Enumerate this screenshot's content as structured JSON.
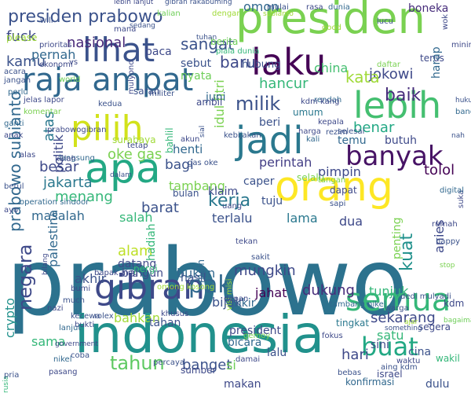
{
  "palette": {
    "dark_purple": "#440154",
    "indigo": "#3b2f80",
    "blue": "#31688e",
    "teal": "#21918c",
    "green": "#35b779",
    "lime": "#90d743",
    "yellow": "#dde318"
  },
  "words": [
    {
      "text": "prabowo",
      "color": "#2c728e"
    },
    {
      "text": "indonesia",
      "color": "#21918c"
    },
    {
      "text": "presiden",
      "color": "#7ad151"
    },
    {
      "text": "orang",
      "color": "#fde725"
    },
    {
      "text": "apa",
      "color": "#23a884"
    },
    {
      "text": "raja ampat",
      "color": "#31688e"
    },
    {
      "text": "lihat",
      "color": "#3b528b"
    },
    {
      "text": "laku",
      "color": "#440154"
    },
    {
      "text": "pilih",
      "color": "#d2e21b"
    },
    {
      "text": "jadi",
      "color": "#2a788e"
    },
    {
      "text": "lebih",
      "color": "#44bf70"
    },
    {
      "text": "semua",
      "color": "#35b779"
    },
    {
      "text": "gibran",
      "color": "#3e4989"
    },
    {
      "text": "banyak",
      "color": "#471365"
    },
    {
      "text": "presiden prabowo",
      "color": "#3b528b"
    },
    {
      "text": "tahun",
      "color": "#5ec962"
    },
    {
      "text": "buat",
      "color": "#22a884"
    },
    {
      "text": "pak",
      "color": "#31688e"
    },
    {
      "text": "kerja",
      "color": "#2a788e"
    },
    {
      "text": "negara",
      "color": "#3e4989"
    },
    {
      "text": "prabowo subianto",
      "color": "#31688e"
    },
    {
      "text": "kuat",
      "color": "#21918c"
    },
    {
      "text": "milik",
      "color": "#3b528b"
    },
    {
      "text": "baik",
      "color": "#472d7b"
    },
    {
      "text": "jokowi",
      "color": "#3e4989"
    },
    {
      "text": "kata",
      "color": "#a0da39"
    },
    {
      "text": "baru",
      "color": "#3e4989"
    },
    {
      "text": "sangat",
      "color": "#3b528b"
    },
    {
      "text": "nasional",
      "color": "#482878"
    },
    {
      "text": "fuck",
      "color": "#3e4989"
    },
    {
      "text": "kamu",
      "color": "#3b528b"
    },
    {
      "text": "pernah",
      "color": "#31688e"
    },
    {
      "text": "nyata",
      "color": "#6ece58"
    },
    {
      "text": "baca",
      "color": "#3e4989"
    },
    {
      "text": "omon",
      "color": "#31688e"
    },
    {
      "text": "boneka",
      "color": "#472d7b"
    },
    {
      "text": "china",
      "color": "#44bf70"
    },
    {
      "text": "hubung",
      "color": "#3b528b"
    },
    {
      "text": "hancur",
      "color": "#35b779"
    },
    {
      "text": "terus",
      "color": "#3e4989"
    },
    {
      "text": "harap",
      "color": "#31688e"
    },
    {
      "text": "atas",
      "color": "#2a788e"
    },
    {
      "text": "politik",
      "color": "#3e4989"
    },
    {
      "text": "benar",
      "color": "#22a884"
    },
    {
      "text": "beri",
      "color": "#3b528b"
    },
    {
      "text": "umum",
      "color": "#2a788e"
    },
    {
      "text": "temu",
      "color": "#31688e"
    },
    {
      "text": "butuh",
      "color": "#3e4989"
    },
    {
      "text": "oke gas",
      "color": "#7ad151"
    },
    {
      "text": "henti",
      "color": "#31688e"
    },
    {
      "text": "bagi",
      "color": "#3b528b"
    },
    {
      "text": "perintah",
      "color": "#433e85"
    },
    {
      "text": "pimpin",
      "color": "#3e4989"
    },
    {
      "text": "tolol",
      "color": "#440154"
    },
    {
      "text": "besar",
      "color": "#3e4989"
    },
    {
      "text": "jakarta",
      "color": "#2a788e"
    },
    {
      "text": "tambang",
      "color": "#7ad151"
    },
    {
      "text": "menang",
      "color": "#35b779"
    },
    {
      "text": "masalah",
      "color": "#31688e"
    },
    {
      "text": "barat",
      "color": "#3b528b"
    },
    {
      "text": "salah",
      "color": "#35b779"
    },
    {
      "text": "terlalu",
      "color": "#3b528b"
    },
    {
      "text": "lama",
      "color": "#2a788e"
    },
    {
      "text": "dua",
      "color": "#3e4989"
    },
    {
      "text": "tuju",
      "color": "#3b528b"
    },
    {
      "text": "klaim",
      "color": "#3e4989"
    },
    {
      "text": "caper",
      "color": "#3b528b"
    },
    {
      "text": "selalu",
      "color": "#7ad151"
    },
    {
      "text": "palestina",
      "color": "#31688e"
    },
    {
      "text": "alam",
      "color": "#bddf26"
    },
    {
      "text": "hadiah",
      "color": "#35b779"
    },
    {
      "text": "anies",
      "color": "#3e4989"
    },
    {
      "text": "penting",
      "color": "#7ad151"
    },
    {
      "text": "mungkin",
      "color": "#3e4989"
    },
    {
      "text": "dukung",
      "color": "#472d7b"
    },
    {
      "text": "tunjuk",
      "color": "#35b779"
    },
    {
      "text": "akhir",
      "color": "#3b528b"
    },
    {
      "text": "bukan",
      "color": "#31688e"
    },
    {
      "text": "datang",
      "color": "#3e4989"
    },
    {
      "text": "bangun",
      "color": "#3e4989"
    },
    {
      "text": "jahat",
      "color": "#440154"
    },
    {
      "text": "bijak",
      "color": "#3b528b"
    },
    {
      "text": "sekarang",
      "color": "#3e4989"
    },
    {
      "text": "satu",
      "color": "#35b779"
    },
    {
      "text": "bahkan",
      "color": "#a0da39"
    },
    {
      "text": "tahan",
      "color": "#3b528b"
    },
    {
      "text": "pikir",
      "color": "#31688e"
    },
    {
      "text": "president",
      "color": "#3e4989"
    },
    {
      "text": "tingkat",
      "color": "#2a788e"
    },
    {
      "text": "segera",
      "color": "#3e4989"
    },
    {
      "text": "crypto",
      "color": "#21918c"
    },
    {
      "text": "sama",
      "color": "#35b779"
    },
    {
      "text": "banget",
      "color": "#3b528b"
    },
    {
      "text": "si",
      "color": "#6ece58"
    },
    {
      "text": "lalu",
      "color": "#3b528b"
    },
    {
      "text": "hari",
      "color": "#3e4989"
    },
    {
      "text": "bicara",
      "color": "#31688e"
    },
    {
      "text": "sini",
      "color": "#3e4989"
    },
    {
      "text": "cina",
      "color": "#3b528b"
    },
    {
      "text": "wakil",
      "color": "#35b779"
    },
    {
      "text": "makan",
      "color": "#3e4989"
    },
    {
      "text": "konfirmasi",
      "color": "#31688e"
    },
    {
      "text": "dulu",
      "color": "#3b528b"
    },
    {
      "text": "israel",
      "color": "#3e4989"
    },
    {
      "text": "idul fitri",
      "color": "#7ad151"
    },
    {
      "text": "juni",
      "color": "#31688e"
    },
    {
      "text": "ambil",
      "color": "#3e4989"
    },
    {
      "text": "sebut",
      "color": "#3b528b"
    },
    {
      "text": "please",
      "color": "#a0da39"
    },
    {
      "text": "prioritas",
      "color": "#3e4989"
    },
    {
      "text": "saran",
      "color": "#3b528b"
    },
    {
      "text": "berita",
      "color": "#6ece58"
    },
    {
      "text": "dunia",
      "color": "#31688e"
    },
    {
      "text": "rasa",
      "color": "#3e4989"
    },
    {
      "text": "mulai",
      "color": "#3b528b"
    },
    {
      "text": "langsung",
      "color": "#31688e"
    },
    {
      "text": "kalah",
      "color": "#3e4989"
    },
    {
      "text": "pergi",
      "color": "#35b779"
    },
    {
      "text": "hasil",
      "color": "#3b528b"
    },
    {
      "text": "uang",
      "color": "#3e4989"
    },
    {
      "text": "kali",
      "color": "#31688e"
    },
    {
      "text": "sapi",
      "color": "#3b528b"
    },
    {
      "text": "dapat",
      "color": "#3e4989"
    },
    {
      "text": "tangan",
      "color": "#7ad151"
    },
    {
      "text": "rezim",
      "color": "#3b528b"
    },
    {
      "text": "kepala",
      "color": "#3e4989"
    },
    {
      "text": "rendah",
      "color": "#31688e"
    },
    {
      "text": "kdm kang",
      "color": "#3e4989"
    },
    {
      "text": "gas oke",
      "color": "#3b528b"
    },
    {
      "text": "surabaya",
      "color": "#a0da39"
    },
    {
      "text": "prabowogibran",
      "color": "#3e4989"
    },
    {
      "text": "militer",
      "color": "#3b528b"
    },
    {
      "text": "lebih lanjut",
      "color": "#3e4989"
    },
    {
      "text": "gibran rakabuming",
      "color": "#3b528b"
    },
    {
      "text": "operation sindoor",
      "color": "#31688e"
    },
    {
      "text": "bapak aing",
      "color": "#3e4989"
    },
    {
      "text": "kecewa",
      "color": "#3b528b"
    },
    {
      "text": "bukti",
      "color": "#3e4989"
    },
    {
      "text": "rolex",
      "color": "#3b528b"
    },
    {
      "text": "khusus",
      "color": "#3e4989"
    },
    {
      "text": "nikel",
      "color": "#31688e"
    },
    {
      "text": "pasang",
      "color": "#3e4989"
    },
    {
      "text": "percaya",
      "color": "#3b528b"
    },
    {
      "text": "sumber",
      "color": "#3e4989"
    },
    {
      "text": "tambang nikel",
      "color": "#31688e"
    },
    {
      "text": "fokus",
      "color": "#3e4989"
    },
    {
      "text": "bebas",
      "color": "#3b528b"
    },
    {
      "text": "waktu",
      "color": "#3e4989"
    },
    {
      "text": "aing kdm",
      "color": "#3b528b"
    },
    {
      "text": "kdm",
      "color": "#3e4989"
    },
    {
      "text": "acara",
      "color": "#3b528b"
    },
    {
      "text": "ekonomi",
      "color": "#3e4989"
    },
    {
      "text": "piala dunia",
      "color": "#35b779"
    },
    {
      "text": "tuhan",
      "color": "#3b528b"
    },
    {
      "text": "world",
      "color": "#6ece58"
    },
    {
      "text": "good",
      "color": "#a0da39"
    },
    {
      "text": "wok",
      "color": "#3e4989"
    },
    {
      "text": "hukum",
      "color": "#3b528b"
    },
    {
      "text": "bangsa",
      "color": "#31688e"
    },
    {
      "text": "harga",
      "color": "#3e4989"
    },
    {
      "text": "selesai",
      "color": "#3b528b"
    },
    {
      "text": "daftar",
      "color": "#7ad151"
    },
    {
      "text": "mining",
      "color": "#3e4989"
    },
    {
      "text": "jangan",
      "color": "#3b528b"
    },
    {
      "text": "perlu",
      "color": "#31688e"
    },
    {
      "text": "mana",
      "color": "#3e4989"
    },
    {
      "text": "bulan",
      "color": "#3b528b"
    },
    {
      "text": "main",
      "color": "#31688e"
    },
    {
      "text": "visi misi",
      "color": "#a0da39"
    },
    {
      "text": "dedi mulyadi",
      "color": "#3b528b"
    },
    {
      "text": "rumah",
      "color": "#3e4989"
    },
    {
      "text": "stop",
      "color": "#7ad151"
    },
    {
      "text": "happy",
      "color": "#3b528b"
    },
    {
      "text": "suka",
      "color": "#3e4989"
    },
    {
      "text": "digital",
      "color": "#31688e"
    },
    {
      "text": "bagaimana",
      "color": "#6ece58"
    },
    {
      "text": "something",
      "color": "#3b528b"
    },
    {
      "text": "depan",
      "color": "#3e4989"
    },
    {
      "text": "sakit",
      "color": "#3b528b"
    },
    {
      "text": "ajar",
      "color": "#a0da39"
    },
    {
      "text": "bilang",
      "color": "#3e4989"
    },
    {
      "text": "much",
      "color": "#3b528b"
    },
    {
      "text": "nazi",
      "color": "#3e4989"
    },
    {
      "text": "lanjut",
      "color": "#31688e"
    },
    {
      "text": "rusia",
      "color": "#35b779"
    },
    {
      "text": "bumi",
      "color": "#3e4989"
    },
    {
      "text": "coba",
      "color": "#3b528b"
    },
    {
      "text": "government",
      "color": "#3e4989"
    },
    {
      "text": "gemoy",
      "color": "#7ad151"
    },
    {
      "text": "pria",
      "color": "#3b528b"
    },
    {
      "text": "akun",
      "color": "#3e4989"
    },
    {
      "text": "sial",
      "color": "#3b528b"
    },
    {
      "text": "kalian",
      "color": "#6ece58"
    },
    {
      "text": "dengar",
      "color": "#a0da39"
    },
    {
      "text": "sedang",
      "color": "#3b528b"
    },
    {
      "text": "mulyono",
      "color": "#3e4989"
    },
    {
      "text": "bahlil",
      "color": "#35b779"
    },
    {
      "text": "betul",
      "color": "#3b528b"
    },
    {
      "text": "alas",
      "color": "#3e4989"
    },
    {
      "text": "nah",
      "color": "#3b528b"
    },
    {
      "text": "ayo",
      "color": "#3e4989"
    },
    {
      "text": "dalam",
      "color": "#3b528b"
    },
    {
      "text": "ganti",
      "color": "#31688e"
    },
    {
      "text": "subianto",
      "color": "#a0da39"
    },
    {
      "text": "jelas lapor",
      "color": "#3e4989"
    },
    {
      "text": "kebijakan",
      "color": "#3b528b"
    },
    {
      "text": "anak",
      "color": "#3e4989"
    },
    {
      "text": "komentar",
      "color": "#7ad151"
    },
    {
      "text": "lucu",
      "color": "#3b528b"
    },
    {
      "text": "damai",
      "color": "#3e4989"
    },
    {
      "text": "warga",
      "color": "#3b528b"
    },
    {
      "text": "omong kosong",
      "color": "#a0da39"
    },
    {
      "text": "tekan",
      "color": "#3e4989"
    },
    {
      "text": "will",
      "color": "#3b528b"
    },
    {
      "text": "vs",
      "color": "#3e4989"
    },
    {
      "text": "kedua",
      "color": "#3b528b"
    },
    {
      "text": "tetap",
      "color": "#3e4989"
    }
  ]
}
